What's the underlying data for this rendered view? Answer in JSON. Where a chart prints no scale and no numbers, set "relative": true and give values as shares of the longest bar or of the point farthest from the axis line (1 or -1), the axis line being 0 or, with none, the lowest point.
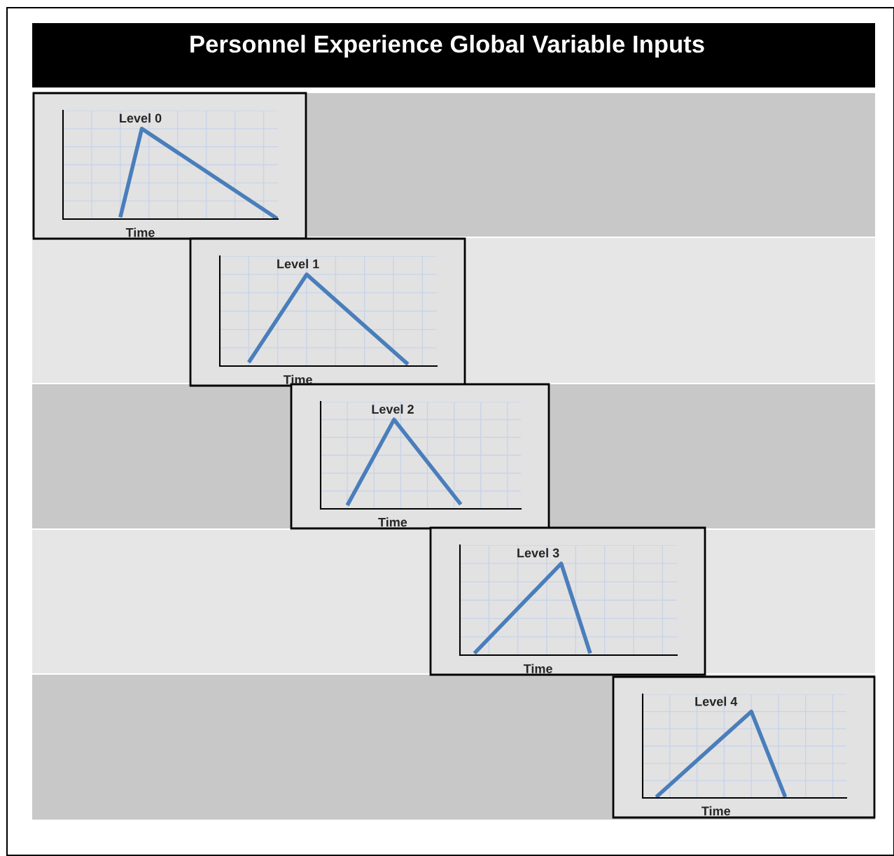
{
  "chart_data": [
    {
      "type": "line",
      "title": "Level 0",
      "xlabel": "Time",
      "relative": true,
      "annotations": [
        "Personnel Experience Global Variable Inputs"
      ],
      "grid": true,
      "marker": "none",
      "line_style": "solid",
      "categories": [
        null,
        null,
        null,
        null,
        null,
        null,
        null,
        null,
        null,
        null,
        null,
        null,
        null,
        null,
        null,
        null,
        null,
        null,
        null,
        null,
        null,
        null,
        null,
        null,
        null,
        null,
        null,
        null,
        null,
        null,
        null
      ],
      "series": [
        {
          "color": "#4a7ebb",
          "values": [
            null,
            null,
            null,
            null,
            null,
            null,
            null,
            null,
            0.02,
            null,
            null,
            1,
            null,
            null,
            null,
            null,
            null,
            null,
            null,
            null,
            null,
            null,
            null,
            null,
            null,
            null,
            null,
            null,
            null,
            null,
            0
          ]
        }
      ]
    },
    {
      "type": "line",
      "title": "Level 1",
      "xlabel": "Time",
      "relative": true,
      "grid": true,
      "marker": "none",
      "line_style": "solid",
      "categories": [
        null,
        null,
        null,
        null,
        null,
        null,
        null,
        null,
        null,
        null,
        null,
        null,
        null,
        null,
        null,
        null,
        null,
        null,
        null,
        null,
        null,
        null,
        null,
        null,
        null,
        null,
        null,
        null,
        null,
        null,
        null
      ],
      "series": [
        {
          "color": "#4a7ebb",
          "values": [
            null,
            null,
            null,
            null,
            0.04,
            null,
            null,
            null,
            null,
            null,
            null,
            null,
            1,
            null,
            null,
            null,
            null,
            null,
            null,
            null,
            null,
            null,
            null,
            null,
            null,
            null,
            0.02,
            null,
            null,
            null,
            null
          ]
        }
      ]
    },
    {
      "type": "line",
      "title": "Level 2",
      "xlabel": "Time",
      "relative": true,
      "grid": true,
      "marker": "none",
      "line_style": "solid",
      "categories": [
        null,
        null,
        null,
        null,
        null,
        null,
        null,
        null,
        null,
        null,
        null,
        null,
        null,
        null,
        null,
        null,
        null,
        null,
        null,
        null,
        null,
        null,
        null,
        null,
        null,
        null,
        null,
        null,
        null,
        null,
        null
      ],
      "series": [
        {
          "color": "#4a7ebb",
          "values": [
            null,
            null,
            null,
            null,
            0.04,
            null,
            null,
            null,
            null,
            null,
            null,
            1,
            null,
            null,
            null,
            null,
            null,
            null,
            null,
            null,
            null,
            0.05,
            null,
            null,
            null,
            null,
            null,
            null,
            null,
            null,
            null
          ]
        }
      ]
    },
    {
      "type": "line",
      "title": "Level 3",
      "xlabel": "Time",
      "relative": true,
      "grid": true,
      "marker": "none",
      "line_style": "solid",
      "categories": [
        null,
        null,
        null,
        null,
        null,
        null,
        null,
        null,
        null,
        null,
        null,
        null,
        null,
        null,
        null,
        null,
        null,
        null,
        null,
        null,
        null,
        null,
        null,
        null,
        null,
        null,
        null,
        null,
        null,
        null,
        null
      ],
      "series": [
        {
          "color": "#4a7ebb",
          "values": [
            null,
            null,
            0.02,
            null,
            null,
            null,
            null,
            null,
            null,
            null,
            null,
            null,
            null,
            null,
            1,
            null,
            null,
            null,
            0.02,
            null,
            null,
            null,
            null,
            null,
            null,
            null,
            null,
            null,
            null,
            null,
            null
          ]
        }
      ]
    },
    {
      "type": "line",
      "title": "Level 4",
      "xlabel": "Time",
      "relative": true,
      "grid": true,
      "marker": "none",
      "line_style": "solid",
      "categories": [
        null,
        null,
        null,
        null,
        null,
        null,
        null,
        null,
        null,
        null,
        null,
        null,
        null,
        null,
        null,
        null,
        null,
        null,
        null,
        null,
        null,
        null,
        null,
        null,
        null,
        null,
        null,
        null,
        null,
        null,
        null
      ],
      "series": [
        {
          "color": "#4a7ebb",
          "values": [
            null,
            null,
            0.01,
            null,
            null,
            null,
            null,
            null,
            null,
            null,
            null,
            null,
            null,
            null,
            null,
            null,
            1,
            null,
            null,
            null,
            null,
            0.01,
            null,
            null,
            null,
            null,
            null,
            null,
            null,
            null,
            null
          ]
        }
      ]
    }
  ]
}
